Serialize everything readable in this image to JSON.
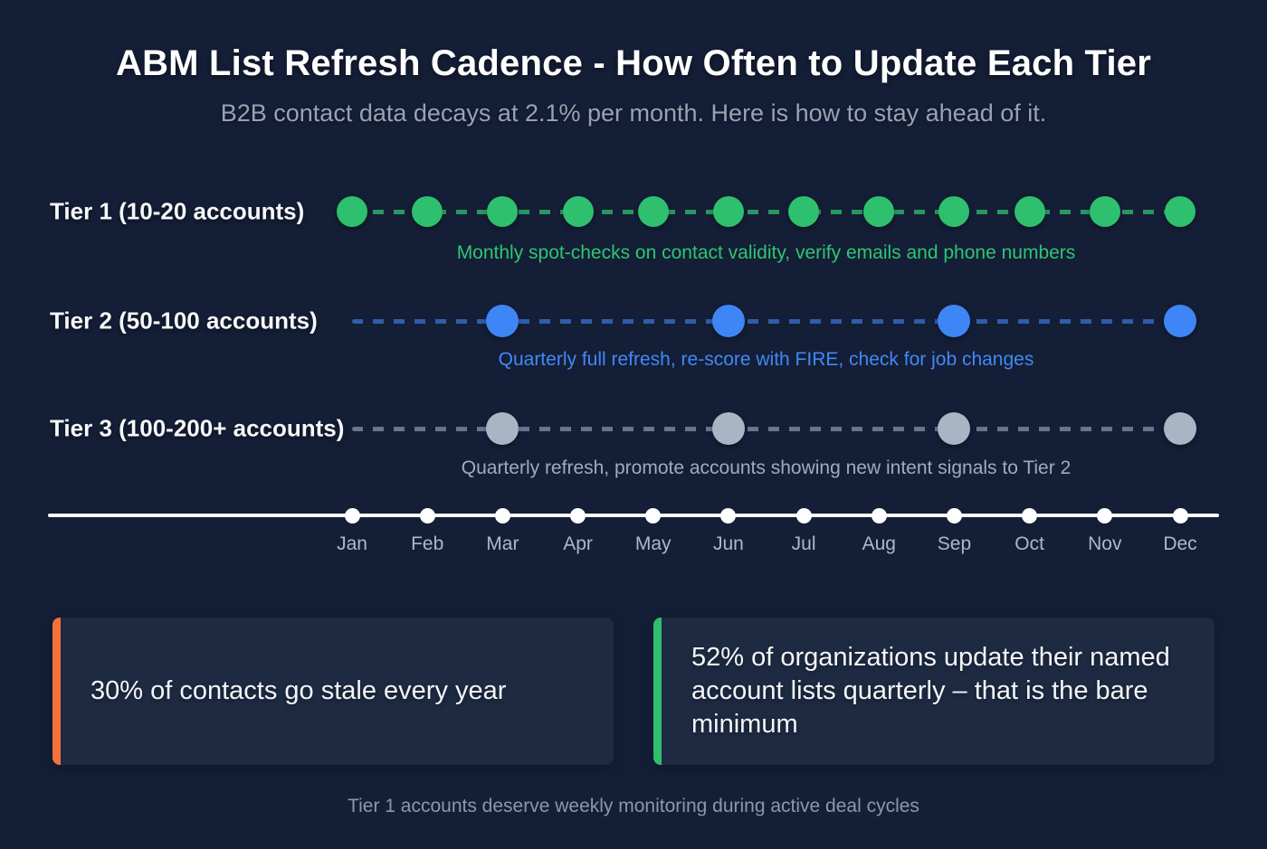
{
  "header": {
    "title": "ABM List Refresh Cadence - How Often to Update Each Tier",
    "subtitle": "B2B contact data decays at 2.1% per month. Here is how to stay ahead of it."
  },
  "chart_data": {
    "type": "timeline",
    "title": "ABM List Refresh Cadence - How Often to Update Each Tier",
    "subtitle": "B2B contact data decays at 2.1% per month. Here is how to stay ahead of it.",
    "categories": [
      "Jan",
      "Feb",
      "Mar",
      "Apr",
      "May",
      "Jun",
      "Jul",
      "Aug",
      "Sep",
      "Oct",
      "Nov",
      "Dec"
    ],
    "axis_color": "#ffffff",
    "month_label_color": "#aeb8c8",
    "series": [
      {
        "id": "tier-1",
        "label": "Tier 1 (10-20 accounts)",
        "cadence": "monthly",
        "active_months": [
          0,
          1,
          2,
          3,
          4,
          5,
          6,
          7,
          8,
          9,
          10,
          11
        ],
        "caption": "Monthly spot-checks on contact validity, verify emails and phone numbers",
        "dot_color": "#2ec06e",
        "line_color": "rgba(46,192,110,0.75)",
        "caption_color": "#2fc571",
        "dot_size": 34
      },
      {
        "id": "tier-2",
        "label": "Tier 2 (50-100 accounts)",
        "cadence": "quarterly",
        "active_months": [
          2,
          5,
          8,
          11
        ],
        "caption": "Quarterly full refresh, re-score with FIRE, check for job changes",
        "dot_color": "#3e86f5",
        "line_color": "rgba(62,134,245,0.62)",
        "caption_color": "#4189f5",
        "dot_size": 36
      },
      {
        "id": "tier-3",
        "label": "Tier 3 (100-200+ accounts)",
        "cadence": "quarterly",
        "active_months": [
          2,
          5,
          8,
          11
        ],
        "caption": "Quarterly refresh, promote accounts showing new intent signals to Tier 2",
        "dot_color": "#a9b5c5",
        "line_color": "rgba(150,163,182,0.65)",
        "caption_color": "#9fabbd",
        "dot_size": 36
      }
    ]
  },
  "stat_cards": [
    {
      "accent_color": "#f4713c",
      "text": "30% of contacts go stale every year"
    },
    {
      "accent_color": "#2ebe6c",
      "text": "52% of organizations update their named account lists quarterly – that is the bare minimum"
    }
  ],
  "footer": {
    "note": "Tier 1 accounts deserve weekly monitoring during active deal cycles"
  },
  "colors": {
    "background": "#141e36",
    "card_background": "#1d2a42",
    "title": "#ffffff",
    "subtitle": "#99a2b4",
    "footer": "#8c98aa"
  }
}
